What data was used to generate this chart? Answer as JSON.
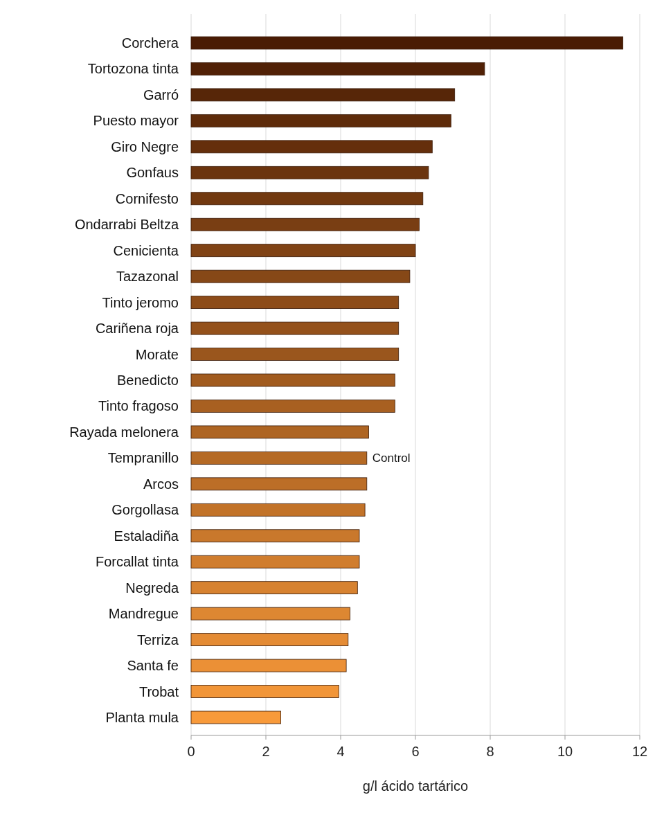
{
  "chart_data": {
    "type": "bar",
    "orientation": "horizontal",
    "xlabel": "g/l ácido tartárico",
    "categories": [
      "Corchera",
      "Tortozona tinta",
      "Garró",
      "Puesto mayor",
      "Giro Negre",
      "Gonfaus",
      "Cornifesto",
      "Ondarrabi Beltza",
      "Cenicienta",
      "Tazazonal",
      "Tinto jeromo",
      "Cariñena roja",
      "Morate",
      "Benedicto",
      "Tinto fragoso",
      "Rayada melonera",
      "Tempranillo",
      "Arcos",
      "Gorgollasa",
      "Estaladiña",
      "Forcallat tinta",
      "Negreda",
      "Mandregue",
      "Terriza",
      "Santa fe",
      "Trobat",
      "Planta mula"
    ],
    "values": [
      11.55,
      7.85,
      7.05,
      6.95,
      6.45,
      6.35,
      6.2,
      6.1,
      6.0,
      5.85,
      5.55,
      5.55,
      5.55,
      5.45,
      5.45,
      4.75,
      4.7,
      4.7,
      4.65,
      4.5,
      4.5,
      4.45,
      4.25,
      4.2,
      4.15,
      3.95,
      2.4
    ],
    "colors": [
      "#4a1c04",
      "#512106",
      "#572608",
      "#5e2b0a",
      "#652f0c",
      "#6b340e",
      "#723910",
      "#793e13",
      "#804315",
      "#864817",
      "#8d4c19",
      "#94511b",
      "#9a561d",
      "#a15b1f",
      "#a86021",
      "#ae6523",
      "#b56a25",
      "#bc6e27",
      "#c27329",
      "#c9782c",
      "#d07d2e",
      "#d78230",
      "#dd8732",
      "#e48b34",
      "#eb9036",
      "#f19538",
      "#f89a3a"
    ],
    "xlim": [
      0,
      12
    ],
    "xticks": [
      0,
      2,
      4,
      6,
      8,
      10,
      12
    ],
    "grid": "x",
    "annotations": [
      {
        "text": "Control",
        "x": 4.7,
        "y": "Tempranillo"
      }
    ]
  }
}
